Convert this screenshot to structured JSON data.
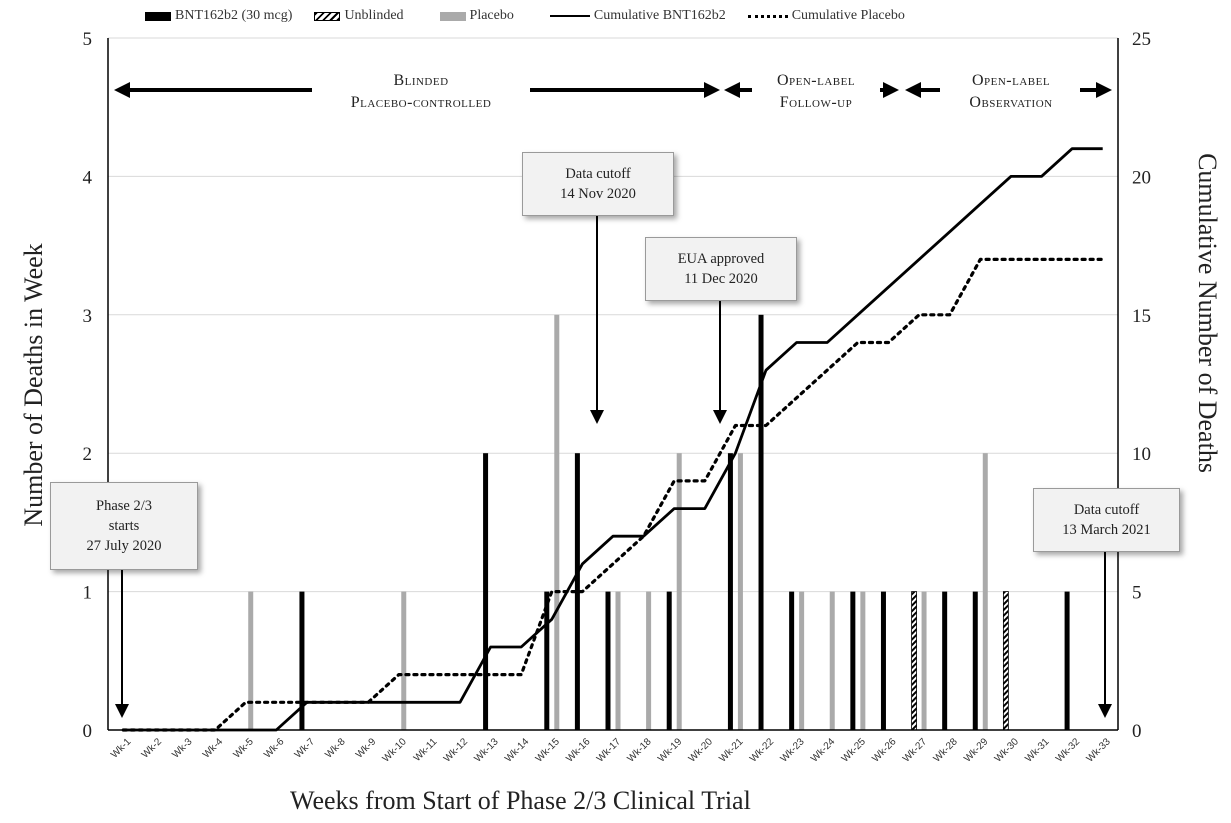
{
  "legend": {
    "bnt": "BNT162b2 (30 mcg)",
    "unblinded": "Unblinded",
    "placebo": "Placebo",
    "cum_bnt": "Cumulative BNT162b2",
    "cum_placebo": "Cumulative Placebo"
  },
  "phases": {
    "blinded_1": "Blinded",
    "blinded_2": "Placebo-controlled",
    "openlabel_1": "Open-label",
    "openlabel_2": "Follow-up",
    "observation_1": "Open-label",
    "observation_2": "Observation"
  },
  "callouts": {
    "phase_start_1": "Phase 2/3",
    "phase_start_2": "starts",
    "phase_start_3": "27 July 2020",
    "cutoff1_1": "Data cutoff",
    "cutoff1_2": "14 Nov 2020",
    "eua_1": "EUA approved",
    "eua_2": "11 Dec 2020",
    "cutoff2_1": "Data cutoff",
    "cutoff2_2": "13 March 2021"
  },
  "axes": {
    "xlabel": "Weeks from Start of Phase 2/3 Clinical Trial",
    "ylabel_left": "Number of Deaths in Week",
    "ylabel_right": "Cumulative Number of Deaths"
  },
  "chart_data": {
    "type": "bar",
    "categories": [
      "Wk-1",
      "Wk-2",
      "Wk-3",
      "Wk-4",
      "Wk-5",
      "Wk-6",
      "Wk-7",
      "Wk-8",
      "Wk-9",
      "Wk-10",
      "Wk-11",
      "Wk-12",
      "Wk-13",
      "Wk-14",
      "Wk-15",
      "Wk-16",
      "Wk-17",
      "Wk-18",
      "Wk-19",
      "Wk-20",
      "Wk-21",
      "Wk-22",
      "Wk-23",
      "Wk-24",
      "Wk-25",
      "Wk-26",
      "Wk-27",
      "Wk-28",
      "Wk-29",
      "Wk-30",
      "Wk-31",
      "Wk-32",
      "Wk-33"
    ],
    "ylim_left": [
      0,
      5
    ],
    "ylim_right": [
      0,
      25
    ],
    "yticks_left": [
      0,
      1,
      2,
      3,
      4,
      5
    ],
    "yticks_right": [
      0,
      5,
      10,
      15,
      20,
      25
    ],
    "series": [
      {
        "name": "BNT162b2 (30 mcg)",
        "kind": "bar",
        "color": "#000000",
        "values": [
          0,
          0,
          0,
          0,
          0,
          0,
          1,
          0,
          0,
          0,
          0,
          0,
          2,
          0,
          1,
          2,
          1,
          0,
          1,
          0,
          2,
          3,
          1,
          0,
          1,
          1,
          0,
          1,
          1,
          0,
          0,
          1,
          0
        ]
      },
      {
        "name": "Unblinded",
        "kind": "bar",
        "color": "#000000",
        "pattern": "hatch",
        "values": [
          0,
          0,
          0,
          0,
          0,
          0,
          0,
          0,
          0,
          0,
          0,
          0,
          0,
          0,
          0,
          0,
          0,
          0,
          0,
          0,
          0,
          0,
          0,
          0,
          0,
          0,
          1,
          0,
          0,
          1,
          0,
          0,
          0
        ]
      },
      {
        "name": "Placebo",
        "kind": "bar",
        "color": "#aaaaaa",
        "values": [
          0,
          0,
          0,
          0,
          1,
          0,
          0,
          0,
          0,
          1,
          0,
          0,
          0,
          0,
          3,
          0,
          1,
          1,
          2,
          0,
          2,
          0,
          1,
          1,
          1,
          0,
          1,
          0,
          2,
          0,
          0,
          0,
          0
        ]
      },
      {
        "name": "Cumulative BNT162b2",
        "kind": "line",
        "axis": "right",
        "color": "#000000",
        "x": [
          1,
          6,
          7,
          12,
          13,
          14,
          15,
          16,
          17,
          18,
          19,
          20,
          21,
          22,
          23,
          24,
          25,
          26,
          27,
          28,
          29,
          30,
          31,
          32,
          33
        ],
        "values": [
          0,
          0,
          1,
          1,
          3,
          3,
          4,
          6,
          7,
          7,
          8,
          8,
          10,
          13,
          14,
          14,
          15,
          16,
          17,
          18,
          19,
          20,
          20,
          21,
          21
        ]
      },
      {
        "name": "Cumulative Placebo",
        "kind": "line",
        "axis": "right",
        "style": "dotted",
        "color": "#000000",
        "x": [
          1,
          4,
          5,
          9,
          10,
          14,
          15,
          16,
          17,
          18,
          19,
          20,
          21,
          22,
          23,
          24,
          25,
          26,
          27,
          28,
          29,
          30,
          31,
          32,
          33
        ],
        "values": [
          0,
          0,
          1,
          1,
          2,
          2,
          5,
          5,
          6,
          7,
          9,
          9,
          11,
          11,
          12,
          13,
          14,
          14,
          15,
          15,
          17,
          17,
          17,
          17,
          17
        ]
      }
    ],
    "grid": true,
    "legend_position": "top"
  }
}
